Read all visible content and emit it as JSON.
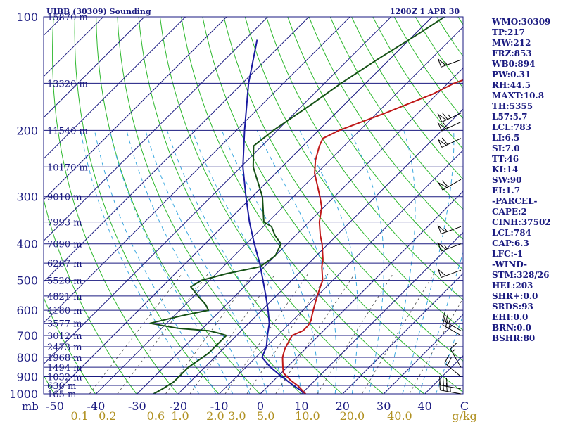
{
  "chart_data": {
    "type": "skew-t",
    "title_left": "UIBB (30309) Sounding",
    "title_right": "1200Z  1 APR 30",
    "pressure_ticks": [
      {
        "p": 100,
        "label": "100"
      },
      {
        "p": 200,
        "label": "200"
      },
      {
        "p": 300,
        "label": "300"
      },
      {
        "p": 400,
        "label": "400"
      },
      {
        "p": 500,
        "label": "500"
      },
      {
        "p": 600,
        "label": "600"
      },
      {
        "p": 700,
        "label": "700"
      },
      {
        "p": 800,
        "label": "800"
      },
      {
        "p": 900,
        "label": "900"
      },
      {
        "p": 1000,
        "label": "1000"
      }
    ],
    "height_levels": [
      {
        "p": 100,
        "label": "15870 m"
      },
      {
        "p": 150,
        "label": "13320 m"
      },
      {
        "p": 200,
        "label": "11540 m"
      },
      {
        "p": 250,
        "label": "10170 m"
      },
      {
        "p": 300,
        "label": "9010 m"
      },
      {
        "p": 350,
        "label": "7993 m"
      },
      {
        "p": 400,
        "label": "7090 m"
      },
      {
        "p": 450,
        "label": "6267 m"
      },
      {
        "p": 500,
        "label": "5520 m"
      },
      {
        "p": 550,
        "label": "4821 m"
      },
      {
        "p": 600,
        "label": "4180 m"
      },
      {
        "p": 650,
        "label": "3577 m"
      },
      {
        "p": 700,
        "label": "3012 m"
      },
      {
        "p": 750,
        "label": "2473 m"
      },
      {
        "p": 800,
        "label": "1968 m"
      },
      {
        "p": 850,
        "label": "1494 m"
      },
      {
        "p": 900,
        "label": "1032 m"
      },
      {
        "p": 950,
        "label": "630 m"
      },
      {
        "p": 1000,
        "label": "165 m"
      }
    ],
    "x_unit_label": "mb",
    "temperature_ticks": [
      {
        "t": -50,
        "label": "-50"
      },
      {
        "t": -40,
        "label": "-40"
      },
      {
        "t": -30,
        "label": "-30"
      },
      {
        "t": -20,
        "label": "-20"
      },
      {
        "t": -10,
        "label": "-10"
      },
      {
        "t": 0,
        "label": "0"
      },
      {
        "t": 10,
        "label": "10"
      },
      {
        "t": 20,
        "label": "20"
      },
      {
        "t": 30,
        "label": "30"
      },
      {
        "t": 40,
        "label": "40"
      }
    ],
    "temperature_unit_label": "C",
    "mixing_ratio_ticks": [
      {
        "w": 0.1,
        "label": "0.1"
      },
      {
        "w": 0.2,
        "label": "0.2"
      },
      {
        "w": 0.6,
        "label": "0.6"
      },
      {
        "w": 1.0,
        "label": "1.0"
      },
      {
        "w": 2.0,
        "label": "2.0"
      },
      {
        "w": 3.0,
        "label": "3.0"
      },
      {
        "w": 5.0,
        "label": "5.0"
      },
      {
        "w": 10.0,
        "label": "10.0"
      },
      {
        "w": 20.0,
        "label": "20.0"
      },
      {
        "w": 40.0,
        "label": "40.0"
      }
    ],
    "mixing_ratio_unit_label": "g/kg",
    "temperature_profile": [
      [
        1000,
        11
      ],
      [
        950,
        7
      ],
      [
        920,
        4
      ],
      [
        880,
        0.5
      ],
      [
        850,
        -1
      ],
      [
        800,
        -3.5
      ],
      [
        760,
        -5
      ],
      [
        720,
        -6
      ],
      [
        700,
        -6.5
      ],
      [
        680,
        -5
      ],
      [
        660,
        -5
      ],
      [
        640,
        -5.5
      ],
      [
        620,
        -6.5
      ],
      [
        600,
        -7.5
      ],
      [
        560,
        -9.5
      ],
      [
        520,
        -11.5
      ],
      [
        500,
        -12.5
      ],
      [
        460,
        -16
      ],
      [
        440,
        -17.5
      ],
      [
        400,
        -21.5
      ],
      [
        380,
        -24
      ],
      [
        350,
        -27.5
      ],
      [
        320,
        -30.5
      ],
      [
        300,
        -33.5
      ],
      [
        260,
        -40.5
      ],
      [
        240,
        -43.5
      ],
      [
        220,
        -46
      ],
      [
        210,
        -47
      ],
      [
        200,
        -45
      ],
      [
        180,
        -38
      ],
      [
        160,
        -31
      ],
      [
        150,
        -28.5
      ],
      [
        135,
        -21
      ],
      [
        125,
        -13
      ],
      [
        115,
        -11.5
      ],
      [
        100,
        -9
      ]
    ],
    "dewpoint_profile": [
      [
        1000,
        -26
      ],
      [
        970,
        -25
      ],
      [
        930,
        -24
      ],
      [
        900,
        -24
      ],
      [
        850,
        -24
      ],
      [
        780,
        -22.5
      ],
      [
        730,
        -22.5
      ],
      [
        700,
        -22.5
      ],
      [
        690,
        -25
      ],
      [
        680,
        -28
      ],
      [
        670,
        -36
      ],
      [
        650,
        -44
      ],
      [
        620,
        -38
      ],
      [
        600,
        -33
      ],
      [
        580,
        -35
      ],
      [
        550,
        -39
      ],
      [
        520,
        -43
      ],
      [
        500,
        -42
      ],
      [
        480,
        -37.5
      ],
      [
        460,
        -31
      ],
      [
        430,
        -30
      ],
      [
        400,
        -31.5
      ],
      [
        380,
        -35
      ],
      [
        360,
        -38
      ],
      [
        350,
        -41
      ],
      [
        300,
        -47.5
      ],
      [
        250,
        -57
      ],
      [
        220,
        -62
      ],
      [
        200,
        -61
      ],
      [
        170,
        -58
      ],
      [
        150,
        -56
      ],
      [
        130,
        -53
      ],
      [
        110,
        -49
      ],
      [
        100,
        -47
      ]
    ],
    "parcel_profile": [
      [
        1000,
        11
      ],
      [
        950,
        6
      ],
      [
        900,
        1
      ],
      [
        850,
        -4
      ],
      [
        800,
        -8.5
      ],
      [
        750,
        -10
      ],
      [
        700,
        -12.5
      ],
      [
        650,
        -15
      ],
      [
        600,
        -18.5
      ],
      [
        550,
        -22.5
      ],
      [
        500,
        -27
      ],
      [
        450,
        -32
      ],
      [
        400,
        -38
      ],
      [
        350,
        -44.5
      ],
      [
        300,
        -51.5
      ],
      [
        250,
        -59.5
      ],
      [
        200,
        -68
      ],
      [
        150,
        -78.5
      ],
      [
        115,
        -87
      ]
    ],
    "wind_barbs": [
      {
        "p": 1000,
        "dir": 280,
        "spd": 35
      },
      {
        "p": 970,
        "dir": 280,
        "spd": 30
      },
      {
        "p": 900,
        "dir": 310,
        "spd": 20
      },
      {
        "p": 850,
        "dir": 330,
        "spd": 15
      },
      {
        "p": 700,
        "dir": 300,
        "spd": 25
      },
      {
        "p": 680,
        "dir": 300,
        "spd": 25
      },
      {
        "p": 470,
        "dir": 250,
        "spd": 50
      },
      {
        "p": 400,
        "dir": 250,
        "spd": 55
      },
      {
        "p": 360,
        "dir": 250,
        "spd": 55
      },
      {
        "p": 270,
        "dir": 240,
        "spd": 60
      },
      {
        "p": 210,
        "dir": 245,
        "spd": 60
      },
      {
        "p": 190,
        "dir": 245,
        "spd": 60
      },
      {
        "p": 180,
        "dir": 245,
        "spd": 65
      },
      {
        "p": 130,
        "dir": 250,
        "spd": 55
      }
    ],
    "colors": {
      "isobar": "#1a1a80",
      "isotherm": "#1a1a80",
      "dry_adiabat": "#2db82d",
      "moist_adiabat": "#3aa8e0",
      "mixing_ratio": "#4a4a4a",
      "temperature": "#c01818",
      "dewpoint": "#145014",
      "parcel": "#1a1aa0",
      "wind": "#000000",
      "axis_label": "#1a1a80",
      "mixing_label": "#b09020"
    }
  },
  "indices": [
    "WMO:30309",
    "TP:217",
    "MW:212",
    "FRZ:853",
    "WB0:894",
    "PW:0.31",
    "RH:44.5",
    "MAXT:10.8",
    "TH:5355",
    "L57:5.7",
    "LCL:783",
    "LI:6.5",
    "SI:7.0",
    "TT:46",
    "KI:14",
    "SW:90",
    "EI:1.7",
    "-PARCEL-",
    "CAPE:2",
    "CINH:37502",
    "LCL:784",
    "CAP:6.3",
    "LFC:-1",
    "-WIND-",
    "STM:328/26",
    "HEL:203",
    "SHR+:0.0",
    "SRDS:93",
    "EHI:0.0",
    "BRN:0.0",
    "BSHR:80"
  ]
}
